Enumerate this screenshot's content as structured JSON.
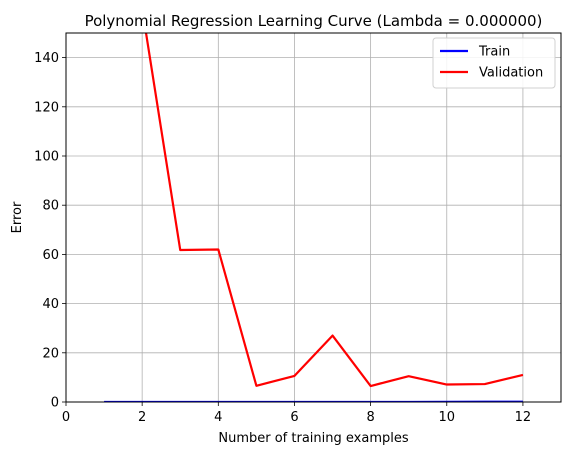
{
  "chart_data": {
    "type": "line",
    "title": "Polynomial Regression Learning Curve (Lambda = 0.000000)",
    "xlabel": "Number of training examples",
    "ylabel": "Error",
    "xlim": [
      0,
      13
    ],
    "ylim": [
      0,
      150
    ],
    "xticks": [
      0,
      2,
      4,
      6,
      8,
      10,
      12
    ],
    "yticks": [
      0,
      20,
      40,
      60,
      80,
      100,
      120,
      140
    ],
    "grid": true,
    "legend_position": "top-right",
    "x": [
      1,
      2,
      3,
      4,
      5,
      6,
      7,
      8,
      9,
      10,
      11,
      12
    ],
    "series": [
      {
        "name": "Train",
        "color": "#0000ff",
        "values": [
          0,
          0,
          0,
          0,
          0,
          0,
          0,
          0,
          0,
          0.05,
          0.1,
          0.1
        ]
      },
      {
        "name": "Validation",
        "color": "#ff0000",
        "values": [
          null,
          160,
          61.8,
          62.0,
          6.6,
          10.6,
          27.0,
          6.5,
          10.5,
          7.1,
          7.3,
          11.0
        ]
      }
    ]
  }
}
